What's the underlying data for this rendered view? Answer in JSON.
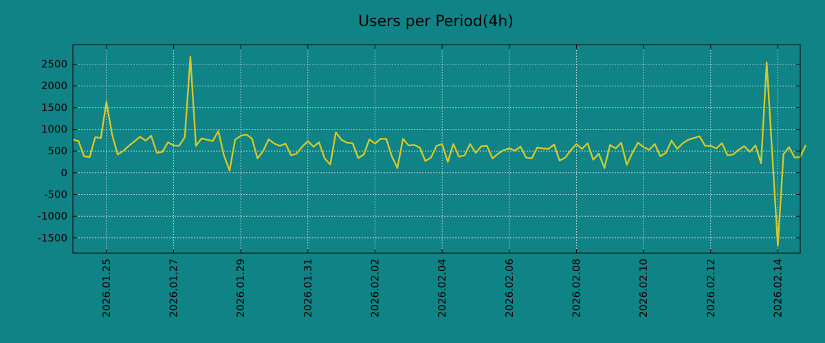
{
  "colors": {
    "background": "#0f8385",
    "line": "#d4c82a",
    "grid": "#cfe3e3",
    "text": "#000000"
  },
  "chart_data": {
    "type": "line",
    "title": "Users per Period(4h)",
    "xlabel": "",
    "ylabel": "",
    "grid": true,
    "legend": "none",
    "xlim": [
      "2026-01-24T00:00",
      "2026-02-14T16:00"
    ],
    "ylim": [
      -1850,
      2950
    ],
    "yticks": [
      -1500,
      -1000,
      -500,
      0,
      500,
      1000,
      1500,
      2000,
      2500
    ],
    "xticks": [
      "2026.01.25",
      "2026.01.27",
      "2026.01.29",
      "2026.01.31",
      "2026.02.02",
      "2026.02.04",
      "2026.02.06",
      "2026.02.08",
      "2026.02.10",
      "2026.02.12",
      "2026.02.14"
    ],
    "xtick_dates": [
      "2026-01-25",
      "2026-01-27",
      "2026-01-29",
      "2026-01-31",
      "2026-02-02",
      "2026-02-04",
      "2026-02-06",
      "2026-02-08",
      "2026-02-10",
      "2026-02-12",
      "2026-02-14"
    ],
    "series": [
      {
        "x_start": "2026-01-24T00:00",
        "x_step_hours": 4,
        "values": [
          760,
          730,
          380,
          360,
          820,
          800,
          1630,
          880,
          420,
          500,
          620,
          720,
          830,
          740,
          850,
          460,
          480,
          700,
          630,
          620,
          820,
          2670,
          620,
          790,
          760,
          730,
          960,
          400,
          50,
          760,
          850,
          880,
          790,
          330,
          500,
          770,
          670,
          620,
          670,
          400,
          440,
          600,
          730,
          600,
          700,
          330,
          190,
          930,
          760,
          690,
          680,
          340,
          420,
          770,
          670,
          780,
          780,
          380,
          110,
          780,
          630,
          640,
          580,
          270,
          350,
          620,
          660,
          250,
          660,
          370,
          400,
          660,
          460,
          610,
          620,
          330,
          440,
          520,
          560,
          510,
          600,
          350,
          330,
          580,
          560,
          550,
          650,
          280,
          350,
          520,
          660,
          550,
          680,
          300,
          440,
          110,
          640,
          560,
          690,
          180,
          460,
          690,
          590,
          530,
          660,
          380,
          460,
          740,
          550,
          680,
          760,
          800,
          840,
          620,
          620,
          560,
          680,
          400,
          420,
          530,
          610,
          480,
          630,
          220,
          2540,
          430,
          -1680,
          430,
          590,
          350,
          360,
          640
        ]
      }
    ]
  }
}
